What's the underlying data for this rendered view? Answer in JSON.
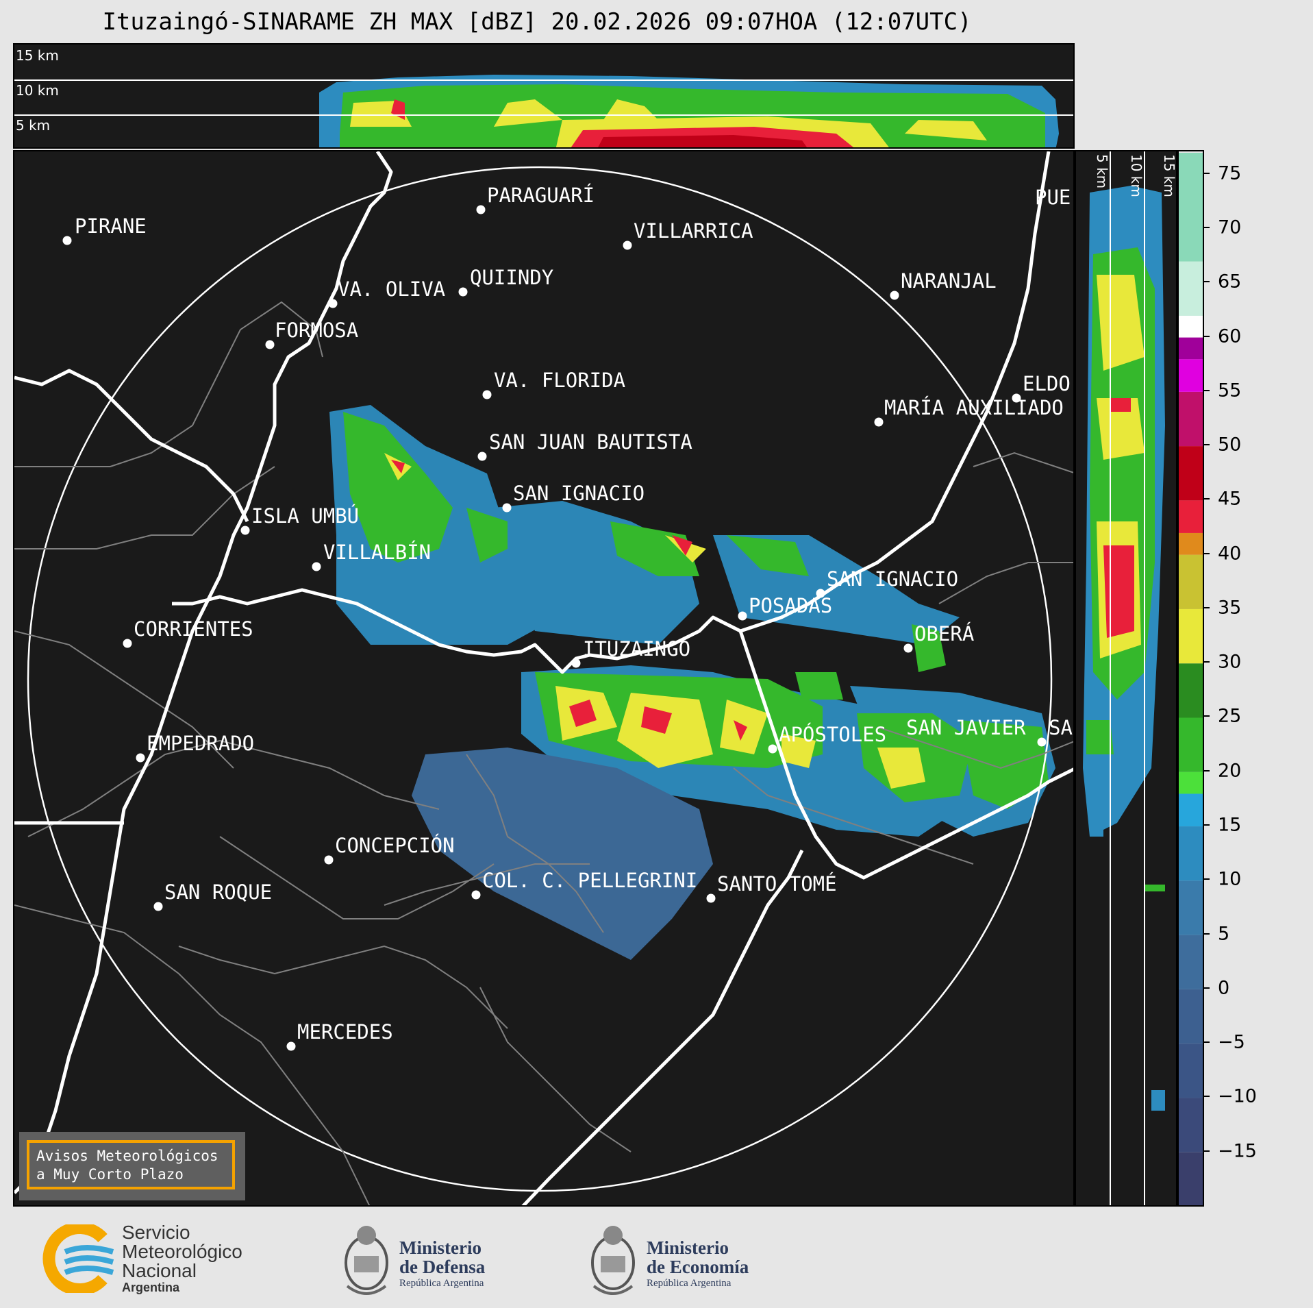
{
  "title": "Ituzaingó-SINARAME ZH MAX [dBZ] 20.02.2026 09:07HOA (12:07UTC)",
  "top_panel": {
    "altitude_labels": [
      "15 km",
      "10 km",
      "5 km"
    ]
  },
  "side_panel": {
    "altitude_labels": [
      "5 km",
      "10 km",
      "15 km"
    ]
  },
  "colorbar": {
    "unit": "dBZ",
    "ticks": [
      "75",
      "70",
      "65",
      "60",
      "55",
      "50",
      "45",
      "40",
      "35",
      "30",
      "25",
      "20",
      "15",
      "10",
      "5",
      "0",
      "−5",
      "−10",
      "−15"
    ],
    "range": [
      -20,
      77
    ],
    "stops": [
      {
        "from": -20,
        "to": -15,
        "color": "#3a3f6b"
      },
      {
        "from": -15,
        "to": -10,
        "color": "#3b4a7a"
      },
      {
        "from": -10,
        "to": -5,
        "color": "#3b5586"
      },
      {
        "from": -5,
        "to": 0,
        "color": "#3d6090"
      },
      {
        "from": 0,
        "to": 5,
        "color": "#3e6d9c"
      },
      {
        "from": 5,
        "to": 10,
        "color": "#3a7bab"
      },
      {
        "from": 10,
        "to": 15,
        "color": "#2d8cbf"
      },
      {
        "from": 15,
        "to": 18,
        "color": "#27a6dc"
      },
      {
        "from": 18,
        "to": 20,
        "color": "#4ce03a"
      },
      {
        "from": 20,
        "to": 25,
        "color": "#35b82c"
      },
      {
        "from": 25,
        "to": 30,
        "color": "#2a8c20"
      },
      {
        "from": 30,
        "to": 35,
        "color": "#e8e83a"
      },
      {
        "from": 35,
        "to": 40,
        "color": "#c9c232"
      },
      {
        "from": 40,
        "to": 42,
        "color": "#e08a1c"
      },
      {
        "from": 42,
        "to": 45,
        "color": "#e8203a"
      },
      {
        "from": 45,
        "to": 50,
        "color": "#c00018"
      },
      {
        "from": 50,
        "to": 55,
        "color": "#c0106a"
      },
      {
        "from": 55,
        "to": 58,
        "color": "#e000e0"
      },
      {
        "from": 58,
        "to": 60,
        "color": "#a0009a"
      },
      {
        "from": 60,
        "to": 62,
        "color": "#ffffff"
      },
      {
        "from": 62,
        "to": 67,
        "color": "#c8eedd"
      },
      {
        "from": 67,
        "to": 77,
        "color": "#8ad9b8"
      }
    ]
  },
  "cities": [
    {
      "name": "PIRANE"
    },
    {
      "name": "PARAGUARÍ"
    },
    {
      "name": "VILLARRICA"
    },
    {
      "name": "QUIINDY"
    },
    {
      "name": "VA. OLIVA"
    },
    {
      "name": "FORMOSA"
    },
    {
      "name": "NARANJAL"
    },
    {
      "name": "PUE"
    },
    {
      "name": "VA. FLORIDA"
    },
    {
      "name": "ELDO"
    },
    {
      "name": "MARÍA AUXILIADO"
    },
    {
      "name": "SAN JUAN BAUTISTA"
    },
    {
      "name": "SAN IGNACIO"
    },
    {
      "name": "ISLA UMBÚ"
    },
    {
      "name": "VILLALBÍN"
    },
    {
      "name": "SAN IGNACIO"
    },
    {
      "name": "POSADAS"
    },
    {
      "name": "CORRIENTES"
    },
    {
      "name": "ITUZAINGÓ"
    },
    {
      "name": "OBERÁ"
    },
    {
      "name": "EMPEDRADO"
    },
    {
      "name": "APÓSTOLES"
    },
    {
      "name": "SAN JAVIER"
    },
    {
      "name": "SA"
    },
    {
      "name": "CONCEPCIÓN"
    },
    {
      "name": "COL. C. PELLEGRINI"
    },
    {
      "name": "SANTO TOMÉ"
    },
    {
      "name": "SAN ROQUE"
    },
    {
      "name": "MERCEDES"
    }
  ],
  "warning_box": {
    "line1": "Avisos Meteorológicos",
    "line2": "a Muy Corto Plazo"
  },
  "footer": {
    "smn": {
      "line1": "Servicio",
      "line2": "Meteorológico",
      "line3": "Nacional",
      "line4": "Argentina"
    },
    "defensa": {
      "line1": "Ministerio",
      "line2": "de Defensa",
      "line3": "República Argentina"
    },
    "economia": {
      "line1": "Ministerio",
      "line2": "de Economía",
      "line3": "República Argentina"
    }
  }
}
